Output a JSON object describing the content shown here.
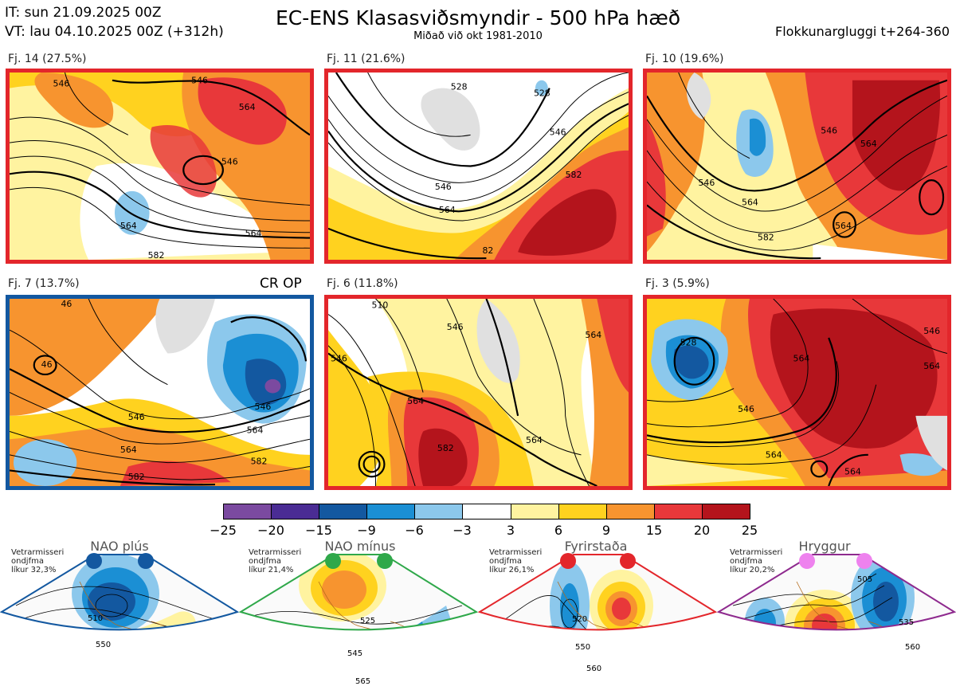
{
  "header": {
    "it": "IT: sun 21.09.2025 00Z",
    "vt": "VT: lau 04.10.2025 00Z  (+312h)",
    "title": "EC-ENS Klasasviðsmyndir - 500 hPa hæð",
    "subtitle": "Miðað við okt 1981-2010",
    "window": "Flokkunargluggi t+264-360"
  },
  "panels": [
    {
      "label": "Fj. 14 (27.5%)",
      "frame": "#e3262b",
      "contours": [
        "546",
        "546",
        "564",
        "546",
        "564",
        "564",
        "582"
      ]
    },
    {
      "label": "Fj. 11 (21.6%)",
      "frame": "#e3262b",
      "contours": [
        "528",
        "528",
        "546",
        "546",
        "564",
        "582",
        "82"
      ]
    },
    {
      "label": "Fj. 10 (19.6%)",
      "frame": "#e3262b",
      "contours": [
        "546",
        "546",
        "564",
        "564",
        "564",
        "582"
      ]
    },
    {
      "label": "Fj. 7 (13.7%)",
      "frame": "#1358a0",
      "badge": "CR OP",
      "contours": [
        "46",
        "46",
        "546",
        "546",
        "564",
        "564",
        "582",
        "582"
      ]
    },
    {
      "label": "Fj. 6 (11.8%)",
      "frame": "#e3262b",
      "contours": [
        "510",
        "546",
        "546",
        "564",
        "564",
        "582",
        "564"
      ]
    },
    {
      "label": "Fj. 3 (5.9%)",
      "frame": "#e3262b",
      "contours": [
        "528",
        "546",
        "546",
        "564",
        "564",
        "564",
        "564"
      ]
    }
  ],
  "colorbar": {
    "ticks": [
      "−25",
      "−20",
      "−15",
      "−9",
      "−6",
      "−3",
      "3",
      "6",
      "9",
      "15",
      "20",
      "25"
    ],
    "colors": [
      "#7b4aa0",
      "#4a2c94",
      "#1358a0",
      "#1b8fd4",
      "#8cc8ec",
      "#ffffff",
      "#fff3a0",
      "#ffd21f",
      "#f7942f",
      "#e8383a",
      "#b4141c"
    ]
  },
  "regimes": [
    {
      "name": "NAO plús",
      "season": "Vetrarmisseri",
      "desc": "ondjfma",
      "prob": "líkur 32,3%",
      "color": "#1358a0",
      "dot": "#1358a0",
      "contours": [
        "510",
        "550"
      ]
    },
    {
      "name": "NAO mínus",
      "season": "Vetrarmisseri",
      "desc": "ondjfma",
      "prob": "líkur 21,4%",
      "color": "#2fa84a",
      "dot": "#2fa84a",
      "contours": [
        "525",
        "545",
        "565"
      ]
    },
    {
      "name": "Fyrirstaða",
      "season": "Vetrarmisseri",
      "desc": "ondjfma",
      "prob": "líkur 26,1%",
      "color": "#e3262b",
      "dot": "#e3262b",
      "contours": [
        "520",
        "550",
        "560"
      ]
    },
    {
      "name": "Hryggur",
      "season": "Vetrarmisseri",
      "desc": "ondjfma",
      "prob": "líkur 20,2%",
      "color": "#8e2a8e",
      "dot": "#ee82ee",
      "contours": [
        "505",
        "535",
        "560"
      ]
    }
  ]
}
